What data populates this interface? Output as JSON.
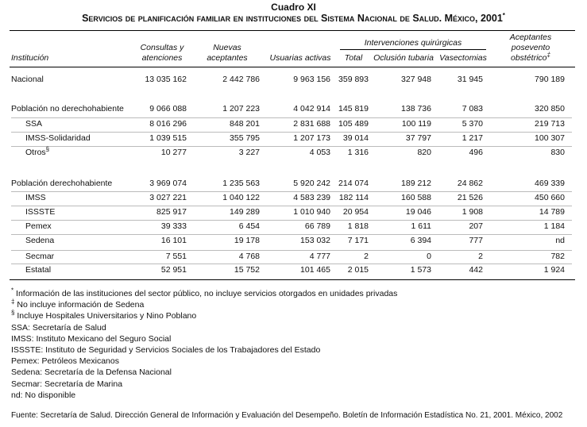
{
  "header": {
    "title": "Cuadro XI",
    "subtitle": "Servicios de planificación familiar en instituciones del Sistema Nacional de Salud. México, 2001",
    "subtitle_mark": "*"
  },
  "table": {
    "columns": [
      "Institución",
      "Consultas y atenciones",
      "Nuevas aceptantes",
      "Usuarias activas",
      "Total",
      "Oclusión tubaria",
      "Vasectomias",
      "Aceptantes posevento obstétrico"
    ],
    "last_column_mark": "‡",
    "group_header": "Intervenciones quirúrgicas",
    "rows": [
      {
        "label": "Nacional",
        "cells": [
          "13 035 162",
          "2 442 786",
          "9 963 156",
          "359 893",
          "327 948",
          "31 945",
          "790 189"
        ],
        "subrows": []
      },
      {
        "label": "Población no derechohabiente",
        "cells": [
          "9 066 088",
          "1 207 223",
          "4 042 914",
          "145 819",
          "138 736",
          "7 083",
          "320 850"
        ],
        "subrows": [
          {
            "label": "SSA",
            "cells": [
              "8 016 296",
              "848 201",
              "2 831 688",
              "105 489",
              "100 119",
              "5 370",
              "219 713"
            ]
          },
          {
            "label": "IMSS-Solidaridad",
            "cells": [
              "1 039 515",
              "355 795",
              "1 207 173",
              "39 014",
              "37 797",
              "1 217",
              "100 307"
            ]
          },
          {
            "label": "Otros",
            "mark": "§",
            "cells": [
              "10 277",
              "3 227",
              "4 053",
              "1 316",
              "820",
              "496",
              "830"
            ]
          }
        ]
      },
      {
        "label": "Población derechohabiente",
        "cells": [
          "3 969 074",
          "1 235 563",
          "5 920 242",
          "214 074",
          "189 212",
          "24 862",
          "469 339"
        ],
        "subrows": [
          {
            "label": "IMSS",
            "cells": [
              "3 027 221",
              "1 040 122",
              "4 583 239",
              "182 114",
              "160 588",
              "21 526",
              "450 660"
            ]
          },
          {
            "label": "ISSSTE",
            "cells": [
              "825 917",
              "149 289",
              "1 010 940",
              "20 954",
              "19 046",
              "1 908",
              "14 789"
            ]
          },
          {
            "label": "Pemex",
            "cells": [
              "39 333",
              "6 454",
              "66 789",
              "1 818",
              "1 611",
              "207",
              "1 184"
            ]
          },
          {
            "label": "Sedena",
            "cells": [
              "16 101",
              "19 178",
              "153 032",
              "7 171",
              "6 394",
              "777",
              "nd"
            ]
          },
          {
            "label": "Secmar",
            "cells": [
              "7 551",
              "4 768",
              "4 777",
              "2",
              "0",
              "2",
              "782"
            ]
          },
          {
            "label": "Estatal",
            "cells": [
              "52 951",
              "15 752",
              "101 465",
              "2 015",
              "1 573",
              "442",
              "1 924"
            ]
          }
        ]
      }
    ]
  },
  "footnotes": [
    {
      "mark": "*",
      "text": "Información de las instituciones del sector público, no incluye servicios otorgados en unidades privadas"
    },
    {
      "mark": "‡",
      "text": "No incluye información de Sedena"
    },
    {
      "mark": "§",
      "text": "Incluye  Hospitales Universitarios  y  Nino Poblano"
    },
    {
      "text": "SSA: Secretaría de Salud"
    },
    {
      "text": "IMSS: Instituto Mexicano del Seguro Social"
    },
    {
      "text": "ISSSTE: Instituto de Seguridad y Servicios Sociales de los Trabajadores del Estado"
    },
    {
      "text": "Pemex: Petróleos Mexicanos"
    },
    {
      "text": "Sedena: Secretaría de la Defensa Nacional"
    },
    {
      "text": "Secmar: Secretaría de Marina"
    },
    {
      "text": "nd: No disponible"
    }
  ],
  "source": "Fuente: Secretaría de Salud. Dirección General de Información y Evaluación del Desempeño. Boletín de Información Estadística No. 21, 2001. México, 2002"
}
